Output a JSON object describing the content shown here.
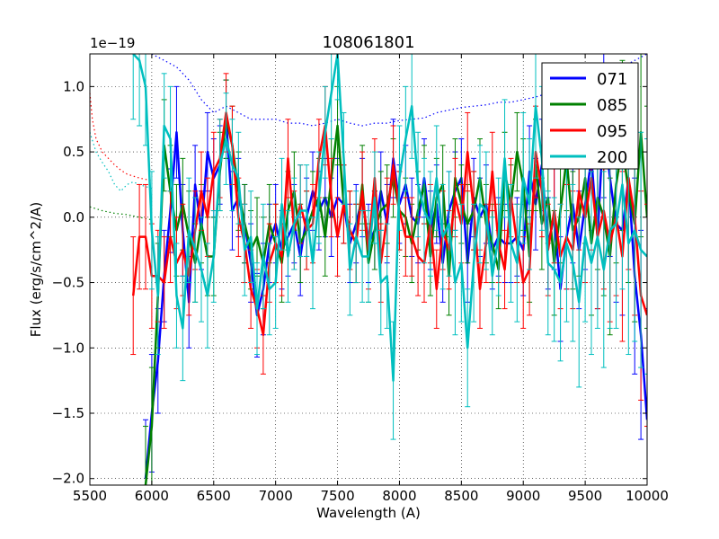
{
  "chart_data": {
    "type": "line",
    "title": "108061801",
    "xlabel": "Wavelength (A)",
    "ylabel": "Flux (erg/s/cm^2/A)",
    "y_offset_text": "1e−19",
    "xlim": [
      5500,
      10000
    ],
    "ylim": [
      -2.05,
      1.25
    ],
    "xticks": [
      5500,
      6000,
      6500,
      7000,
      7500,
      8000,
      8500,
      9000,
      9500,
      10000
    ],
    "xtick_labels": [
      "5500",
      "6000",
      "6500",
      "7000",
      "7500",
      "8000",
      "8500",
      "9000",
      "9500",
      "10000"
    ],
    "yticks": [
      -2.0,
      -1.5,
      -1.0,
      -0.5,
      0.0,
      0.5,
      1.0
    ],
    "ytick_labels": [
      "−2.0",
      "−1.5",
      "−1.0",
      "−0.5",
      "0.0",
      "0.5",
      "1.0"
    ],
    "grid": true,
    "legend_position": "top-right",
    "series": [
      {
        "name": "071",
        "color": "#0000ff",
        "x": [
          5950,
          6000,
          6050,
          6100,
          6150,
          6200,
          6250,
          6300,
          6350,
          6400,
          6450,
          6500,
          6550,
          6600,
          6650,
          6700,
          6750,
          6800,
          6850,
          6900,
          6950,
          7000,
          7050,
          7100,
          7150,
          7200,
          7250,
          7300,
          7350,
          7400,
          7450,
          7500,
          7550,
          7600,
          7650,
          7700,
          7750,
          7800,
          7850,
          7900,
          7950,
          8000,
          8050,
          8100,
          8150,
          8200,
          8250,
          8300,
          8350,
          8400,
          8450,
          8500,
          8550,
          8600,
          8650,
          8700,
          8750,
          8800,
          8850,
          8900,
          8950,
          9000,
          9050,
          9100,
          9150,
          9200,
          9250,
          9300,
          9350,
          9400,
          9450,
          9500,
          9550,
          9600,
          9650,
          9700,
          9750,
          9800,
          9850,
          9900,
          9950,
          10000
        ],
        "y": [
          -2.0,
          -1.5,
          -1.1,
          -0.45,
          0.05,
          0.65,
          -0.1,
          -0.65,
          0.25,
          -0.1,
          0.5,
          0.3,
          0.4,
          0.75,
          0.05,
          0.15,
          -0.05,
          -0.35,
          -0.75,
          -0.55,
          -0.2,
          -0.05,
          -0.25,
          -0.15,
          -0.05,
          -0.3,
          0.0,
          0.2,
          0.05,
          0.15,
          0.0,
          0.15,
          0.1,
          -0.2,
          -0.05,
          0.15,
          -0.2,
          -0.1,
          0.2,
          -0.05,
          0.45,
          0.1,
          0.25,
          0.0,
          -0.05,
          0.3,
          -0.1,
          0.1,
          -0.35,
          0.05,
          0.2,
          0.3,
          -0.35,
          0.15,
          0.0,
          0.1,
          -0.25,
          -0.15,
          -0.2,
          -0.2,
          -0.15,
          -0.25,
          0.35,
          0.1,
          0.4,
          -0.2,
          0.0,
          -0.55,
          -0.15,
          0.1,
          -0.25,
          0.1,
          0.45,
          -0.15,
          0.75,
          0.3,
          -0.05,
          -0.1,
          0.3,
          -0.45,
          -0.9,
          -1.55
        ],
        "err": [
          0.45,
          0.45,
          0.4,
          0.35,
          0.32,
          0.35,
          0.35,
          0.35,
          0.3,
          0.3,
          0.3,
          0.3,
          0.3,
          0.3,
          0.3,
          0.3,
          0.3,
          0.3,
          0.32,
          0.35,
          0.3,
          0.3,
          0.3,
          0.3,
          0.3,
          0.3,
          0.3,
          0.3,
          0.3,
          0.3,
          0.3,
          0.3,
          0.3,
          0.3,
          0.3,
          0.3,
          0.3,
          0.3,
          0.3,
          0.3,
          0.3,
          0.3,
          0.3,
          0.3,
          0.3,
          0.3,
          0.3,
          0.3,
          0.3,
          0.3,
          0.3,
          0.3,
          0.3,
          0.3,
          0.3,
          0.3,
          0.3,
          0.3,
          0.3,
          0.3,
          0.3,
          0.35,
          0.35,
          0.35,
          0.35,
          0.35,
          0.4,
          0.4,
          0.4,
          0.45,
          0.45,
          0.5,
          0.55,
          0.55,
          0.6,
          0.6,
          0.6,
          0.65,
          0.7,
          0.75,
          0.8,
          0.85
        ]
      },
      {
        "name": "085",
        "color": "#008000",
        "x": [
          5950,
          6000,
          6050,
          6100,
          6150,
          6200,
          6250,
          6300,
          6350,
          6400,
          6450,
          6500,
          6550,
          6600,
          6650,
          6700,
          6750,
          6800,
          6850,
          6900,
          6950,
          7000,
          7050,
          7100,
          7150,
          7200,
          7250,
          7300,
          7350,
          7400,
          7450,
          7500,
          7550,
          7600,
          7650,
          7700,
          7750,
          7800,
          7850,
          7900,
          7950,
          8000,
          8050,
          8100,
          8150,
          8200,
          8250,
          8300,
          8350,
          8400,
          8450,
          8500,
          8550,
          8600,
          8650,
          8700,
          8750,
          8800,
          8850,
          8900,
          8950,
          9000,
          9050,
          9100,
          9150,
          9200,
          9250,
          9300,
          9350,
          9400,
          9450,
          9500,
          9550,
          9600,
          9650,
          9700,
          9750,
          9800,
          9850,
          9900,
          9950,
          10000
        ],
        "y": [
          -2.05,
          -1.6,
          -0.6,
          0.55,
          0.2,
          -0.1,
          0.1,
          -0.15,
          -0.35,
          -0.05,
          -0.3,
          -0.3,
          0.35,
          0.75,
          0.55,
          0.2,
          -0.05,
          -0.25,
          -0.15,
          -0.35,
          -0.05,
          -0.2,
          -0.35,
          0.05,
          0.2,
          -0.2,
          -0.1,
          0.05,
          0.15,
          -0.15,
          0.3,
          0.7,
          0.1,
          -0.1,
          -0.2,
          0.25,
          -0.35,
          -0.1,
          0.05,
          0.1,
          0.3,
          0.05,
          0.0,
          -0.2,
          0.05,
          0.25,
          -0.3,
          0.15,
          0.25,
          -0.45,
          0.3,
          0.1,
          -0.05,
          0.05,
          0.3,
          -0.05,
          -0.2,
          -0.4,
          0.35,
          0.1,
          0.5,
          0.25,
          -0.3,
          0.4,
          -0.05,
          0.15,
          -0.35,
          0.05,
          0.45,
          -0.1,
          0.0,
          0.3,
          -0.2,
          0.15,
          0.0,
          -0.3,
          0.25,
          0.55,
          0.2,
          -0.05,
          0.65,
          0.0
        ],
        "err": [
          0.45,
          0.45,
          0.4,
          0.35,
          0.35,
          0.35,
          0.35,
          0.35,
          0.3,
          0.3,
          0.3,
          0.3,
          0.3,
          0.3,
          0.3,
          0.3,
          0.3,
          0.3,
          0.3,
          0.35,
          0.3,
          0.3,
          0.3,
          0.3,
          0.3,
          0.3,
          0.3,
          0.3,
          0.3,
          0.3,
          0.3,
          0.3,
          0.3,
          0.3,
          0.3,
          0.3,
          0.3,
          0.3,
          0.3,
          0.3,
          0.3,
          0.3,
          0.3,
          0.3,
          0.3,
          0.3,
          0.3,
          0.3,
          0.3,
          0.3,
          0.3,
          0.3,
          0.3,
          0.3,
          0.3,
          0.3,
          0.3,
          0.3,
          0.3,
          0.3,
          0.3,
          0.35,
          0.35,
          0.35,
          0.35,
          0.35,
          0.4,
          0.4,
          0.4,
          0.45,
          0.45,
          0.5,
          0.55,
          0.55,
          0.6,
          0.6,
          0.6,
          0.65,
          0.7,
          0.75,
          0.8,
          0.85
        ]
      },
      {
        "name": "095",
        "color": "#ff0000",
        "x": [
          5850,
          5900,
          5950,
          6000,
          6050,
          6100,
          6150,
          6200,
          6250,
          6300,
          6350,
          6400,
          6450,
          6500,
          6550,
          6600,
          6650,
          6700,
          6750,
          6800,
          6850,
          6900,
          6950,
          7000,
          7050,
          7100,
          7150,
          7200,
          7250,
          7300,
          7350,
          7400,
          7450,
          7500,
          7550,
          7600,
          7650,
          7700,
          7750,
          7800,
          7850,
          7900,
          7950,
          8000,
          8050,
          8100,
          8150,
          8200,
          8250,
          8300,
          8350,
          8400,
          8450,
          8500,
          8550,
          8600,
          8650,
          8700,
          8750,
          8800,
          8850,
          8900,
          8950,
          9000,
          9050,
          9100,
          9150,
          9200,
          9250,
          9300,
          9350,
          9400,
          9450,
          9500,
          9550,
          9600,
          9650,
          9700,
          9750,
          9800,
          9850,
          9900,
          9950,
          10000
        ],
        "y": [
          -0.6,
          -0.15,
          -0.15,
          -0.45,
          -0.45,
          -0.5,
          -0.15,
          -0.35,
          -0.25,
          -0.45,
          -0.1,
          0.2,
          0.0,
          0.35,
          0.45,
          0.8,
          0.55,
          0.0,
          -0.2,
          -0.55,
          -0.7,
          -0.9,
          -0.35,
          -0.2,
          -0.3,
          0.45,
          -0.1,
          0.1,
          -0.1,
          -0.05,
          0.45,
          0.7,
          0.15,
          -0.15,
          0.1,
          -0.1,
          -0.2,
          0.2,
          -0.25,
          0.3,
          -0.35,
          0.0,
          0.4,
          0.05,
          -0.15,
          -0.15,
          -0.3,
          -0.35,
          -0.05,
          -0.55,
          -0.1,
          -0.25,
          0.15,
          -0.05,
          0.5,
          0.05,
          -0.55,
          -0.2,
          0.35,
          -0.2,
          -0.4,
          0.15,
          -0.2,
          -0.5,
          -0.4,
          0.5,
          0.2,
          -0.25,
          0.05,
          -0.3,
          -0.15,
          -0.25,
          0.2,
          0.0,
          0.3,
          -0.15,
          0.05,
          -0.2,
          0.0,
          -0.3,
          0.3,
          0.0,
          -0.6,
          -0.75
        ],
        "err": [
          0.45,
          0.4,
          0.4,
          0.4,
          0.35,
          0.35,
          0.35,
          0.35,
          0.35,
          0.3,
          0.3,
          0.3,
          0.3,
          0.3,
          0.3,
          0.3,
          0.3,
          0.3,
          0.3,
          0.3,
          0.3,
          0.3,
          0.3,
          0.3,
          0.3,
          0.3,
          0.3,
          0.3,
          0.3,
          0.3,
          0.3,
          0.3,
          0.3,
          0.3,
          0.3,
          0.3,
          0.3,
          0.3,
          0.3,
          0.3,
          0.3,
          0.3,
          0.3,
          0.3,
          0.3,
          0.3,
          0.3,
          0.3,
          0.3,
          0.3,
          0.3,
          0.3,
          0.3,
          0.3,
          0.3,
          0.3,
          0.3,
          0.3,
          0.3,
          0.3,
          0.3,
          0.3,
          0.3,
          0.35,
          0.35,
          0.35,
          0.35,
          0.35,
          0.4,
          0.4,
          0.4,
          0.45,
          0.45,
          0.5,
          0.55,
          0.55,
          0.6,
          0.6,
          0.6,
          0.65,
          0.7,
          0.75,
          0.8,
          0.85
        ]
      },
      {
        "name": "200",
        "color": "#00bfbf",
        "x": [
          5850,
          5900,
          5950,
          6000,
          6050,
          6100,
          6150,
          6200,
          6250,
          6300,
          6350,
          6400,
          6450,
          6500,
          6550,
          6600,
          6650,
          6700,
          6750,
          6800,
          6850,
          6900,
          6950,
          7000,
          7050,
          7100,
          7150,
          7200,
          7250,
          7300,
          7350,
          7400,
          7450,
          7500,
          7550,
          7600,
          7650,
          7700,
          7750,
          7800,
          7850,
          7900,
          7950,
          8000,
          8050,
          8100,
          8150,
          8200,
          8250,
          8300,
          8350,
          8400,
          8450,
          8500,
          8550,
          8600,
          8650,
          8700,
          8750,
          8800,
          8850,
          8900,
          8950,
          9000,
          9050,
          9100,
          9150,
          9200,
          9250,
          9300,
          9350,
          9400,
          9450,
          9500,
          9550,
          9600,
          9650,
          9700,
          9750,
          9800,
          9850,
          9900,
          9950,
          10000
        ],
        "y": [
          1.25,
          1.2,
          1.0,
          -0.1,
          -0.6,
          0.7,
          0.6,
          -0.6,
          -0.85,
          -0.1,
          -0.25,
          -0.4,
          -0.6,
          -0.3,
          0.4,
          0.6,
          0.4,
          0.3,
          -0.25,
          -0.15,
          -0.7,
          -0.3,
          -0.55,
          -0.5,
          0.1,
          -0.3,
          -0.05,
          0.05,
          0.05,
          -0.35,
          0.15,
          0.65,
          0.95,
          1.25,
          0.45,
          -0.4,
          -0.15,
          -0.3,
          -0.3,
          0.15,
          -0.5,
          -0.45,
          -1.25,
          0.3,
          0.6,
          0.85,
          0.25,
          0.05,
          -0.05,
          0.3,
          -0.15,
          -0.05,
          -0.5,
          -0.35,
          -1.0,
          -0.35,
          0.1,
          0.05,
          -0.45,
          -0.15,
          0.45,
          -0.2,
          -0.35,
          0.3,
          0.1,
          0.85,
          0.45,
          -0.35,
          -0.4,
          -0.5,
          -0.2,
          -0.35,
          -0.65,
          -0.15,
          -0.35,
          -0.15,
          -0.4,
          -0.1,
          -0.05,
          0.25,
          -0.2,
          -0.1,
          -0.25,
          -0.3
        ],
        "err": [
          0.5,
          0.5,
          0.45,
          0.45,
          0.45,
          0.4,
          0.4,
          0.4,
          0.4,
          0.4,
          0.4,
          0.4,
          0.4,
          0.35,
          0.35,
          0.35,
          0.35,
          0.35,
          0.35,
          0.35,
          0.35,
          0.4,
          0.35,
          0.35,
          0.35,
          0.35,
          0.35,
          0.35,
          0.35,
          0.35,
          0.35,
          0.35,
          0.35,
          0.35,
          0.35,
          0.35,
          0.35,
          0.35,
          0.35,
          0.35,
          0.4,
          0.4,
          0.45,
          0.4,
          0.4,
          0.4,
          0.4,
          0.4,
          0.4,
          0.4,
          0.4,
          0.4,
          0.4,
          0.45,
          0.45,
          0.45,
          0.45,
          0.45,
          0.45,
          0.45,
          0.45,
          0.45,
          0.45,
          0.5,
          0.5,
          0.55,
          0.55,
          0.55,
          0.55,
          0.6,
          0.6,
          0.6,
          0.65,
          0.65,
          0.7,
          0.7,
          0.75,
          0.75,
          0.8,
          0.8,
          0.85,
          0.85,
          0.9,
          0.9
        ]
      }
    ],
    "dotted_series": [
      {
        "color": "#0000ff",
        "x": [
          6000,
          6100,
          6200,
          6300,
          6400,
          6500,
          6600,
          6700,
          6800,
          6900,
          7000,
          7100,
          7200,
          7300,
          7400,
          7500,
          7600,
          7700,
          7800,
          7900,
          8000,
          8100,
          8200,
          8300,
          8400,
          8500,
          8600,
          8700,
          8800,
          8900,
          9000,
          9100,
          9200,
          9300,
          9400,
          9500,
          9600,
          9700,
          9800,
          9900,
          10000
        ],
        "y": [
          1.25,
          1.2,
          1.15,
          1.05,
          0.9,
          0.8,
          0.85,
          0.8,
          0.75,
          0.75,
          0.75,
          0.72,
          0.72,
          0.7,
          0.72,
          0.75,
          0.72,
          0.7,
          0.72,
          0.72,
          0.74,
          0.75,
          0.76,
          0.8,
          0.82,
          0.84,
          0.85,
          0.86,
          0.88,
          0.88,
          0.9,
          0.92,
          0.95,
          1.0,
          1.02,
          1.05,
          1.08,
          1.1,
          1.15,
          1.2,
          1.25
        ]
      },
      {
        "color": "#ff0000",
        "x": [
          5500,
          5520,
          5550,
          5600,
          5650,
          5700,
          5750,
          5800,
          5900,
          6000
        ],
        "y": [
          0.95,
          0.75,
          0.6,
          0.5,
          0.45,
          0.4,
          0.36,
          0.33,
          0.3,
          0.28
        ]
      },
      {
        "color": "#00bfbf",
        "x": [
          5500,
          5550,
          5600,
          5650,
          5700,
          5750,
          5800,
          5850,
          5900,
          6000
        ],
        "y": [
          0.65,
          0.5,
          0.42,
          0.35,
          0.25,
          0.2,
          0.25,
          0.27,
          0.25,
          0.22
        ]
      },
      {
        "color": "#008000",
        "x": [
          5500,
          5600,
          5700,
          5800,
          5900,
          6000
        ],
        "y": [
          0.08,
          0.05,
          0.03,
          0.02,
          0.0,
          -0.02
        ]
      }
    ]
  }
}
